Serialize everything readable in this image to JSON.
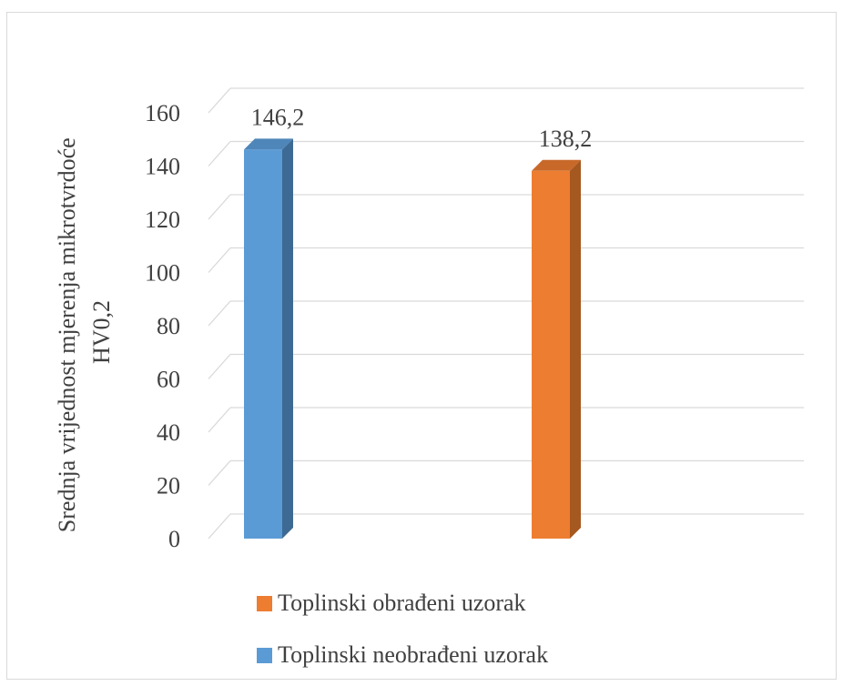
{
  "chart_data": {
    "type": "bar",
    "title": "",
    "xlabel": "",
    "ylabel": "Srednja vrijednost mjerenja mikrotvrdoće HV0,2",
    "ylabel_lines": [
      "Srednja vrijednost mjerenja mikrotvrdoće",
      "HV0,2"
    ],
    "ylim": [
      0,
      160
    ],
    "yticks": [
      "0",
      "20",
      "40",
      "60",
      "80",
      "100",
      "120",
      "140",
      "160"
    ],
    "grid": true,
    "three_d": true,
    "legend_position": "bottom",
    "series": [
      {
        "name": "Toplinski neobrađeni uzorak",
        "value": 146.2,
        "label": "146,2",
        "color": "#5b9bd5",
        "side_color": "#3d6a94",
        "top_color": "#4f86b9"
      },
      {
        "name": "Toplinski obrađeni uzorak",
        "value": 138.2,
        "label": "138,2",
        "color": "#ed7d31",
        "side_color": "#a5581f",
        "top_color": "#c8692a"
      }
    ],
    "legend": [
      {
        "name": "Toplinski obrađeni uzorak",
        "color": "#ed7d31"
      },
      {
        "name": "Toplinski neobrađeni uzorak",
        "color": "#5b9bd5"
      }
    ]
  }
}
